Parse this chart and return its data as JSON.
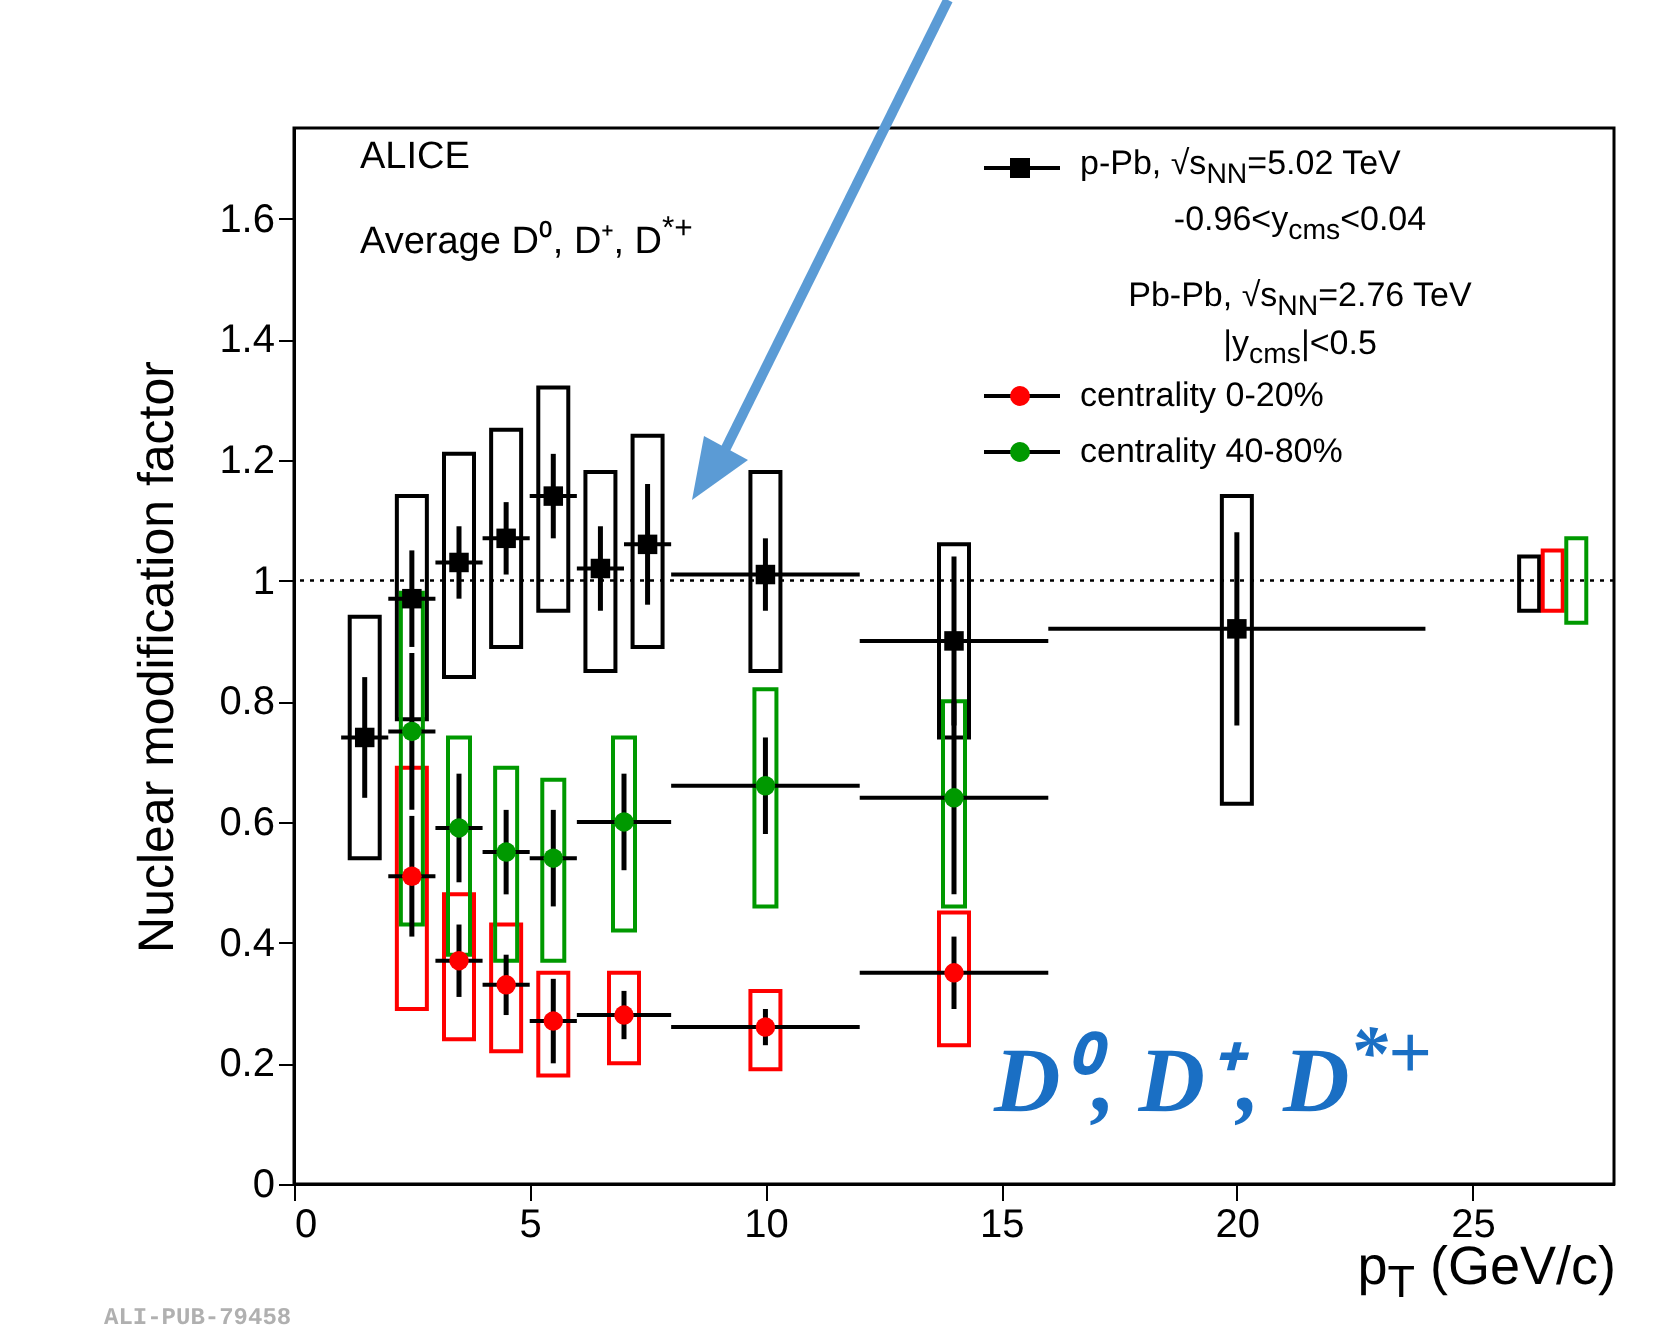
{
  "chart_data": {
    "type": "scatter",
    "xlabel": "p$_{T}$ (GeV/c)",
    "ylabel": "Nuclear modification factor",
    "xlim": [
      0,
      28
    ],
    "xticks": [
      0,
      5,
      10,
      15,
      20,
      25
    ],
    "ylim": [
      0,
      1.75
    ],
    "yticks": [
      0,
      0.2,
      0.4,
      0.6,
      0.8,
      1,
      1.2,
      1.4,
      1.6
    ],
    "grid": false,
    "legend": "top right",
    "series": [
      {
        "type": "bar",
        "color": "#000000",
        "x": [
          1.5,
          2.5,
          3.5,
          4.5,
          5.5,
          6.5,
          7.5,
          10,
          14,
          20
        ],
        "base": [
          0.54,
          0.77,
          0.84,
          0.89,
          0.95,
          0.85,
          0.89,
          0.85,
          0.74,
          0.63
        ],
        "values": [
          0.4,
          0.37,
          0.37,
          0.36,
          0.37,
          0.33,
          0.35,
          0.33,
          0.32,
          0.51
        ]
      },
      {
        "type": "bar",
        "color": "#ff0000",
        "x": [
          2.5,
          3.5,
          4.5,
          5.5,
          7,
          10,
          14
        ],
        "base": [
          0.29,
          0.24,
          0.22,
          0.18,
          0.2,
          0.19,
          0.23
        ],
        "values": [
          0.4,
          0.24,
          0.21,
          0.17,
          0.15,
          0.13,
          0.22
        ]
      },
      {
        "type": "bar",
        "color": "#009900",
        "x": [
          2.5,
          3.5,
          4.5,
          5.5,
          7,
          10,
          14
        ],
        "base": [
          0.43,
          0.38,
          0.37,
          0.37,
          0.42,
          0.46,
          0.46
        ],
        "values": [
          0.55,
          0.36,
          0.32,
          0.3,
          0.32,
          0.36,
          0.34
        ]
      },
      {
        "type": "bar",
        "color": "#000000",
        "x": [
          26.2
        ],
        "base": [
          0.95
        ],
        "values": [
          0.09
        ]
      },
      {
        "type": "bar",
        "color": "#ff0000",
        "x": [
          26.7
        ],
        "base": [
          0.95
        ],
        "values": [
          0.1
        ]
      },
      {
        "type": "bar",
        "color": "#009900",
        "x": [
          27.2
        ],
        "base": [
          0.93
        ],
        "values": [
          0.14
        ]
      },
      {
        "name": "p-Pb, √s$_{NN}$=5.02 TeV",
        "marker": "square",
        "color": "#000000",
        "x": [
          1.5,
          2.5,
          3.5,
          4.5,
          5.5,
          6.5,
          7.5,
          10,
          14,
          20
        ],
        "values": [
          0.74,
          0.97,
          1.03,
          1.07,
          1.14,
          1.02,
          1.06,
          1.01,
          0.9,
          0.92
        ],
        "errors": [
          0.1,
          0.08,
          0.06,
          0.06,
          0.07,
          0.07,
          0.1,
          0.06,
          0.14,
          0.16
        ],
        "xerrors": [
          0.5,
          0.5,
          0.5,
          0.5,
          0.5,
          0.5,
          0.5,
          2,
          2,
          4
        ]
      },
      {
        "name": "centrality 0-20%",
        "marker": "circle",
        "color": "#ff0000",
        "x": [
          2.5,
          3.5,
          4.5,
          5.5,
          7,
          10,
          14
        ],
        "values": [
          0.51,
          0.37,
          0.33,
          0.27,
          0.28,
          0.26,
          0.35
        ],
        "errors": [
          0.1,
          0.06,
          0.05,
          0.07,
          0.04,
          0.03,
          0.06
        ],
        "xerrors": [
          0.5,
          0.5,
          0.5,
          0.5,
          1,
          2,
          2
        ]
      },
      {
        "name": "centrality 40-80%",
        "marker": "circle",
        "color": "#009900",
        "x": [
          2.5,
          3.5,
          4.5,
          5.5,
          7,
          10,
          14
        ],
        "values": [
          0.75,
          0.59,
          0.55,
          0.54,
          0.6,
          0.66,
          0.64
        ],
        "errors": [
          0.13,
          0.09,
          0.07,
          0.08,
          0.08,
          0.08,
          0.16
        ],
        "xerrors": [
          0.5,
          0.5,
          0.5,
          0.5,
          1,
          2,
          2
        ]
      }
    ],
    "ref_lines": [
      {
        "axis": "y",
        "value": 1,
        "line_style": "dotted",
        "color": "#000000"
      }
    ],
    "annotations": [
      "ALICE",
      "Average D⁰, D⁺, D$^{*+}$",
      "-0.96<y$_{cms}$<0.04",
      "Pb-Pb, √s$_{NN}$=2.76 TeV",
      "|y$_{cms}$|<0.5",
      "D⁰, D⁺, D$^{*+}$",
      "ALI-PUB-79458"
    ]
  }
}
